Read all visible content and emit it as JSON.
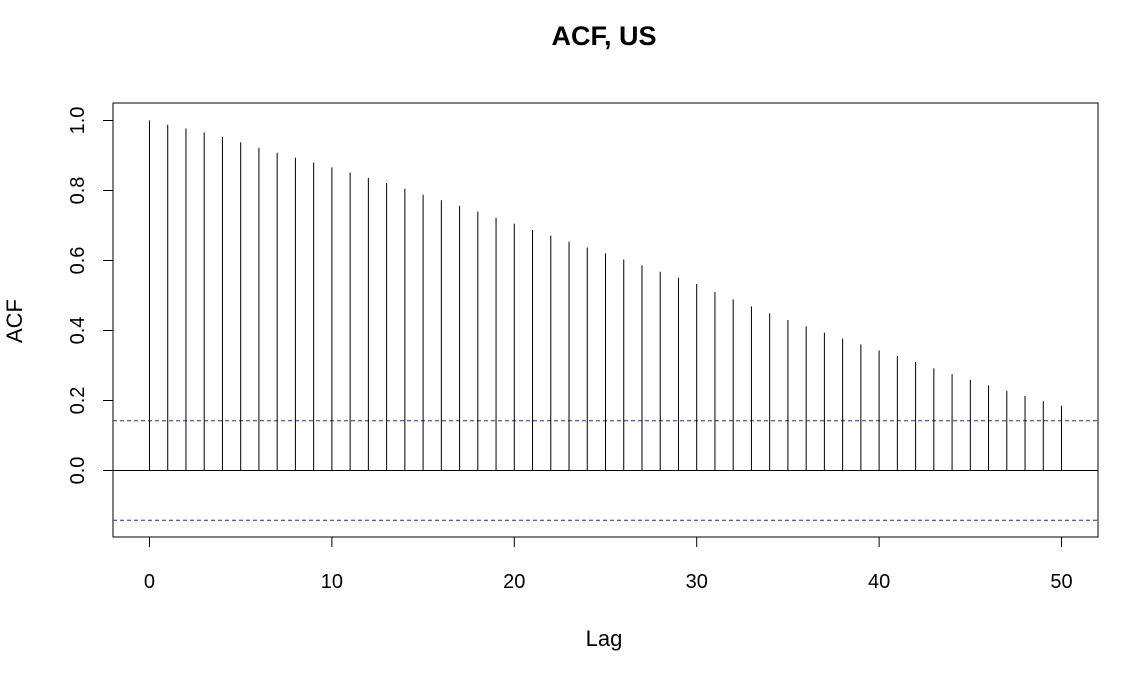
{
  "chart_data": {
    "type": "bar",
    "subtype": "acf-stem",
    "title": "ACF, US",
    "xlabel": "Lag",
    "ylabel": "ACF",
    "xlim": [
      -2,
      52
    ],
    "ylim": [
      -0.19,
      1.05
    ],
    "x_ticks": [
      0,
      10,
      20,
      30,
      40,
      50
    ],
    "x_tick_labels": [
      "0",
      "10",
      "20",
      "30",
      "40",
      "50"
    ],
    "y_ticks": [
      0.0,
      0.2,
      0.4,
      0.6,
      0.8,
      1.0
    ],
    "y_tick_labels": [
      "0.0",
      "0.2",
      "0.4",
      "0.6",
      "0.8",
      "1.0"
    ],
    "lags": [
      0,
      1,
      2,
      3,
      4,
      5,
      6,
      7,
      8,
      9,
      10,
      11,
      12,
      13,
      14,
      15,
      16,
      17,
      18,
      19,
      20,
      21,
      22,
      23,
      24,
      25,
      26,
      27,
      28,
      29,
      30,
      31,
      32,
      33,
      34,
      35,
      36,
      37,
      38,
      39,
      40,
      41,
      42,
      43,
      44,
      45,
      46,
      47,
      48,
      49,
      50
    ],
    "values": [
      1.0,
      0.988,
      0.977,
      0.966,
      0.953,
      0.938,
      0.922,
      0.908,
      0.894,
      0.88,
      0.866,
      0.851,
      0.836,
      0.821,
      0.805,
      0.788,
      0.772,
      0.756,
      0.74,
      0.722,
      0.705,
      0.687,
      0.671,
      0.654,
      0.637,
      0.62,
      0.603,
      0.586,
      0.568,
      0.551,
      0.533,
      0.51,
      0.489,
      0.469,
      0.449,
      0.43,
      0.412,
      0.394,
      0.377,
      0.36,
      0.343,
      0.327,
      0.31,
      0.292,
      0.275,
      0.259,
      0.243,
      0.228,
      0.213,
      0.198,
      0.185
    ],
    "confidence_bounds": [
      0.142,
      -0.142
    ],
    "zero_line": 0,
    "colors": {
      "stems": "#000000",
      "axes": "#000000",
      "confidence": "#2a2a8c",
      "background": "#ffffff"
    }
  }
}
